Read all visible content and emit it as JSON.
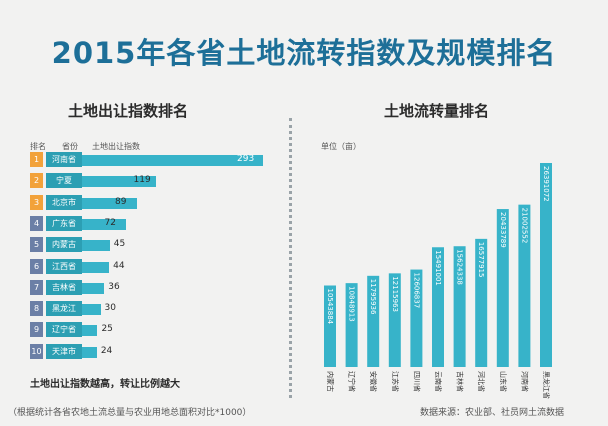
{
  "title": "2015年各省土地流转指数及规模排名",
  "colors": {
    "title": "#1d6f98",
    "bar": "#37b3c9",
    "rank_orange": "#f2a23a",
    "rank_blue": "#6b7fa6",
    "province_teal": "#2c9fb3"
  },
  "left": {
    "subtitle": "土地出让指数排名",
    "headers": {
      "rank": "排名",
      "province": "省份",
      "index": "土地出让指数"
    },
    "note": "土地出让指数越高，转让比例越大",
    "footnote": "（根据统计各省农地土流总量与农业用地总面积对比*1000）"
  },
  "right": {
    "subtitle": "土地流转量排名",
    "unit": "单位（亩）",
    "source": "数据来源：农业部、社员网土流数据"
  },
  "chart_data": [
    {
      "type": "bar",
      "orientation": "horizontal",
      "title": "土地出让指数排名",
      "ranks": [
        "1",
        "2",
        "3",
        "4",
        "5",
        "6",
        "7",
        "8",
        "9",
        "10"
      ],
      "categories": [
        "河南省",
        "宁夏",
        "北京市",
        "广东省",
        "内蒙古",
        "江西省",
        "吉林省",
        "黑龙江",
        "辽宁省",
        "天津市"
      ],
      "values": [
        293,
        119,
        89,
        72,
        45,
        44,
        36,
        30,
        25,
        24
      ],
      "xlim": [
        0,
        293
      ]
    },
    {
      "type": "bar",
      "orientation": "vertical",
      "title": "土地流转量排名",
      "ylabel": "单位（亩）",
      "categories": [
        "内蒙古",
        "辽宁省",
        "安徽省",
        "江苏省",
        "四川省",
        "云南省",
        "吉林省",
        "河北省",
        "山东省",
        "河南省",
        "黑龙江省"
      ],
      "values": [
        10543884,
        10848913,
        11795936,
        12115963,
        12606837,
        15491001,
        15624338,
        16577915,
        20433789,
        21002552,
        26391072
      ],
      "ylim": [
        0,
        26391072
      ]
    }
  ]
}
